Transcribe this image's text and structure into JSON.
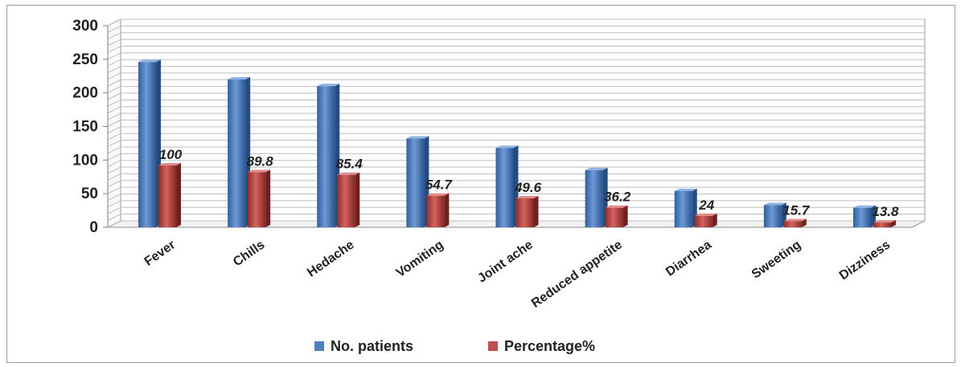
{
  "chart_data": {
    "type": "bar",
    "categories": [
      "Fever",
      "Chills",
      "Hedache",
      "Vomiting",
      "Joint ache",
      "Reduced appetite",
      "Diarrhea",
      "Sweeting",
      "Dizziness"
    ],
    "series": [
      {
        "name": "No. patients",
        "values": [
          246,
          220,
          210,
          132,
          118,
          85,
          54,
          33,
          29
        ],
        "color": "#4f81bd"
      },
      {
        "name": "Percentage%",
        "values": [
          92,
          82,
          78,
          47,
          43,
          29,
          17,
          9,
          7
        ],
        "color": "#c0504d"
      }
    ],
    "data_labels": [
      "100",
      "89.8",
      "85.4",
      "54.7",
      "49.6",
      "36.2",
      "24",
      "15.7",
      "13.8"
    ],
    "yticks": [
      "0",
      "50",
      "100",
      "150",
      "200",
      "250",
      "300"
    ],
    "ylim": [
      0,
      300
    ],
    "grid": true,
    "style": "3d-clustered",
    "legend_position": "bottom",
    "title": "",
    "xlabel": "",
    "ylabel": ""
  }
}
